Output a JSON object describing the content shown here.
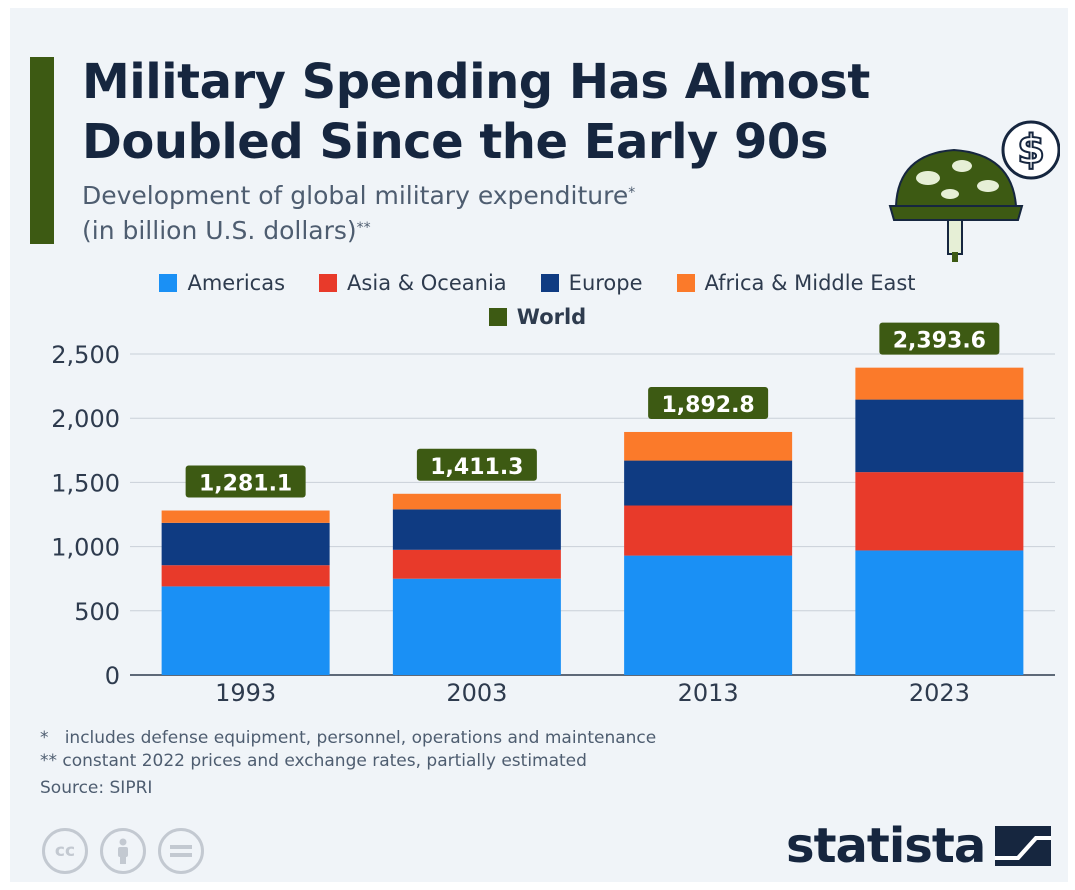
{
  "header": {
    "title": "Military Spending Has Almost Doubled Since the Early 90s",
    "subtitle_line1": "Development of global military expenditure",
    "subtitle_line1_mark": "*",
    "subtitle_line2": "(in billion U.S. dollars)",
    "subtitle_line2_mark": "**"
  },
  "legend": {
    "items": [
      {
        "label": "Americas",
        "color": "#1a90f5"
      },
      {
        "label": "Asia & Oceania",
        "color": "#e83a2a"
      },
      {
        "label": "Europe",
        "color": "#0f3b82"
      },
      {
        "label": "Africa & Middle East",
        "color": "#fb7a2a"
      },
      {
        "label": "World",
        "color": "#3d5a13"
      }
    ]
  },
  "chart_data": {
    "type": "bar",
    "stacked": true,
    "categories": [
      "1993",
      "2003",
      "2013",
      "2023"
    ],
    "series": [
      {
        "name": "Americas",
        "color": "#1a90f5",
        "values": [
          690,
          750,
          930,
          970
        ]
      },
      {
        "name": "Asia & Oceania",
        "color": "#e83a2a",
        "values": [
          165,
          225,
          390,
          610
        ]
      },
      {
        "name": "Europe",
        "color": "#0f3b82",
        "values": [
          330,
          315,
          350,
          565
        ]
      },
      {
        "name": "Africa & Middle East",
        "color": "#fb7a2a",
        "values": [
          96.1,
          121.3,
          222.8,
          248.6
        ]
      }
    ],
    "totals": {
      "name": "World",
      "color": "#3d5a13",
      "values": [
        1281.1,
        1411.3,
        1892.8,
        2393.6
      ],
      "labels": [
        "1,281.1",
        "1,411.3",
        "1,892.8",
        "2,393.6"
      ]
    },
    "yticks": [
      0,
      500,
      1000,
      1500,
      2000,
      2500
    ],
    "ytick_labels": [
      "0",
      "500",
      "1,000",
      "1,500",
      "2,000",
      "2,500"
    ],
    "ylim": [
      0,
      2500
    ],
    "grid": true,
    "legend_position": "top"
  },
  "footnotes": {
    "note1": "*   includes defense equipment, personnel, operations and maintenance",
    "note2": "** constant 2022 prices and exchange rates, partially estimated",
    "source": "Source: SIPRI"
  },
  "license_icons": [
    {
      "name": "cc-icon",
      "text": "cc"
    },
    {
      "name": "attribution-icon",
      "text": ""
    },
    {
      "name": "no-derivatives-icon",
      "text": ""
    }
  ],
  "brand": {
    "name": "statista"
  }
}
